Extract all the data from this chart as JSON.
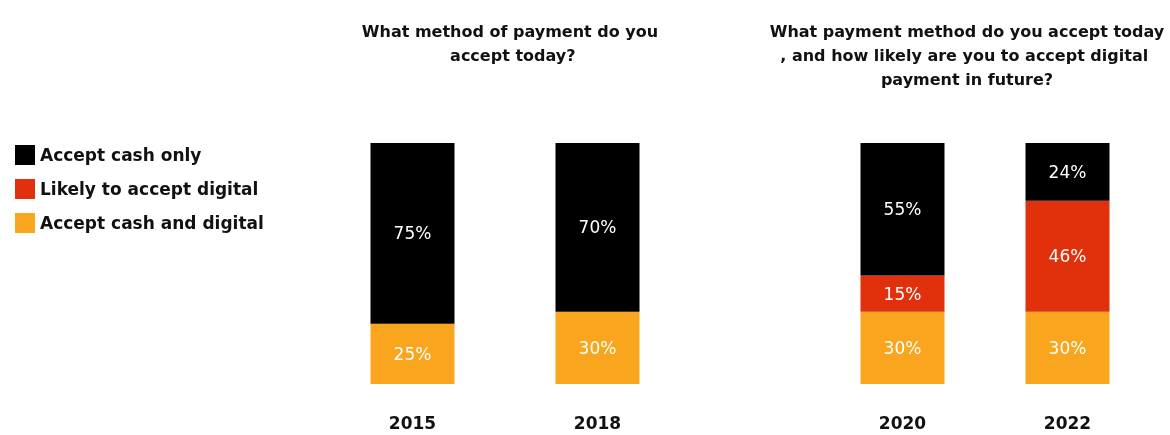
{
  "chart_data": [
    {
      "type": "bar",
      "title": "What method of payment do you accept today?",
      "categories": [
        "2015",
        "2018"
      ],
      "stacked": true,
      "tick_labels": "x",
      "grid": false,
      "legend": "left",
      "series": [
        {
          "name": "Accept cash and digital",
          "color": "#f9a51d",
          "values": [
            25,
            30
          ],
          "value_labels": [
            "25%",
            "30%"
          ]
        },
        {
          "name": "Likely to accept digital",
          "color": "#e0310c",
          "values": [
            null,
            null
          ],
          "value_labels": [
            null,
            null
          ]
        },
        {
          "name": "Accept cash only",
          "color": "#000000",
          "values": [
            75,
            70
          ],
          "value_labels": [
            "75%",
            "70%"
          ]
        }
      ]
    },
    {
      "type": "bar",
      "title": "What payment method do you accept today, and how likely are you to accept digital payment in future?",
      "categories": [
        "2020",
        "2022"
      ],
      "stacked": true,
      "tick_labels": "x",
      "grid": false,
      "legend": false,
      "series": [
        {
          "color": "#f9a51d",
          "values": [
            30,
            30
          ],
          "value_labels": [
            "30%",
            "30%"
          ]
        },
        {
          "color": "#e0310c",
          "values": [
            15,
            46
          ],
          "value_labels": [
            "15%",
            "46%"
          ]
        },
        {
          "color": "#000000",
          "values": [
            55,
            24
          ],
          "value_labels": [
            "55%",
            "24%"
          ]
        }
      ]
    }
  ]
}
